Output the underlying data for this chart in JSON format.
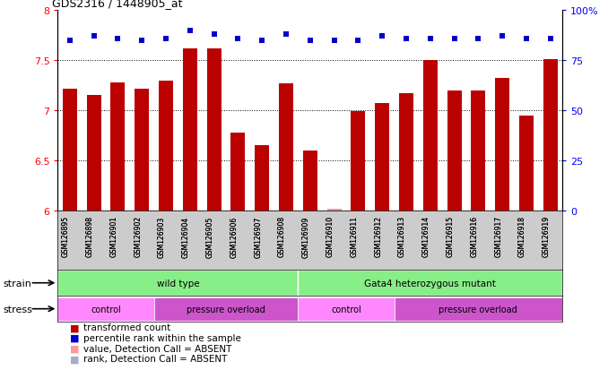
{
  "title": "GDS2316 / 1448905_at",
  "samples": [
    "GSM126895",
    "GSM126898",
    "GSM126901",
    "GSM126902",
    "GSM126903",
    "GSM126904",
    "GSM126905",
    "GSM126906",
    "GSM126907",
    "GSM126908",
    "GSM126909",
    "GSM126910",
    "GSM126911",
    "GSM126912",
    "GSM126913",
    "GSM126914",
    "GSM126915",
    "GSM126916",
    "GSM126917",
    "GSM126918",
    "GSM126919"
  ],
  "bar_values": [
    7.22,
    7.15,
    7.28,
    7.22,
    7.3,
    7.62,
    7.62,
    6.78,
    6.65,
    7.27,
    6.6,
    6.02,
    6.99,
    7.07,
    7.17,
    7.5,
    7.2,
    7.2,
    7.32,
    6.95,
    7.51
  ],
  "bar_absent": [
    false,
    false,
    false,
    false,
    false,
    false,
    false,
    false,
    false,
    false,
    false,
    true,
    false,
    false,
    false,
    false,
    false,
    false,
    false,
    false,
    false
  ],
  "percentile_values": [
    85,
    87,
    86,
    85,
    86,
    90,
    88,
    86,
    85,
    88,
    85,
    85,
    85,
    87,
    86,
    86,
    86,
    86,
    87,
    86,
    86
  ],
  "percentile_absent": [
    false,
    false,
    false,
    false,
    false,
    false,
    false,
    false,
    false,
    false,
    false,
    false,
    false,
    false,
    false,
    false,
    false,
    false,
    false,
    false,
    false
  ],
  "ylim_left": [
    6.0,
    8.0
  ],
  "ylim_right": [
    0,
    100
  ],
  "yticks_left": [
    6.0,
    6.5,
    7.0,
    7.5,
    8.0
  ],
  "yticks_right": [
    0,
    25,
    50,
    75,
    100
  ],
  "bar_color": "#BB0000",
  "bar_absent_color": "#FF9999",
  "dot_color": "#0000CC",
  "dot_absent_color": "#AAAACC",
  "strain_groups": [
    {
      "label": "wild type",
      "start": 0,
      "end": 10,
      "color": "#88EE88"
    },
    {
      "label": "Gata4 heterozygous mutant",
      "start": 10,
      "end": 21,
      "color": "#88EE88"
    }
  ],
  "stress_groups": [
    {
      "label": "control",
      "start": 0,
      "end": 4,
      "color": "#FF88FF"
    },
    {
      "label": "pressure overload",
      "start": 4,
      "end": 10,
      "color": "#CC55CC"
    },
    {
      "label": "control",
      "start": 10,
      "end": 14,
      "color": "#FF88FF"
    },
    {
      "label": "pressure overload",
      "start": 14,
      "end": 21,
      "color": "#CC55CC"
    }
  ],
  "legend_items": [
    {
      "label": "transformed count",
      "color": "#BB0000"
    },
    {
      "label": "percentile rank within the sample",
      "color": "#0000CC"
    },
    {
      "label": "value, Detection Call = ABSENT",
      "color": "#FF9999"
    },
    {
      "label": "rank, Detection Call = ABSENT",
      "color": "#AAAACC"
    }
  ],
  "fig_width": 6.78,
  "fig_height": 4.14,
  "dpi": 100
}
